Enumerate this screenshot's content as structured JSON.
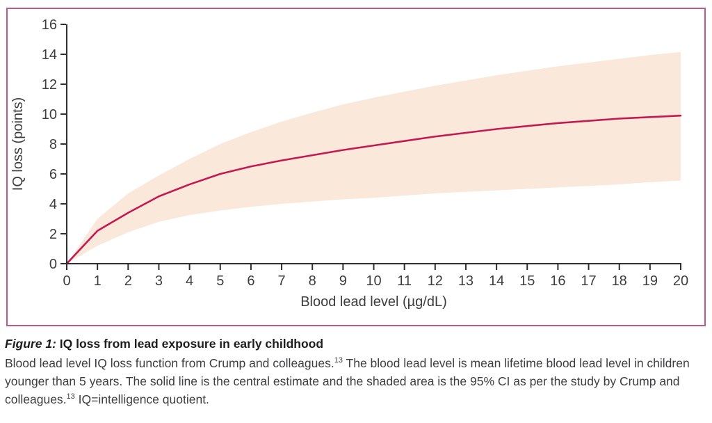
{
  "figure": {
    "panel_border_color": "#bd5a84",
    "background_color": "#ffffff",
    "caption": {
      "title_segments": [
        {
          "text": "Figure 1:",
          "style": "bold-italic"
        },
        {
          "text": " IQ loss from lead exposure in early childhood",
          "style": "bold"
        }
      ],
      "body_segments": [
        {
          "text": "Blood lead level IQ loss function from Crump and colleagues."
        },
        {
          "text": "13",
          "sup": true
        },
        {
          "text": " The blood lead level is mean lifetime blood lead level in children younger than 5 years. The solid line is the central estimate and the shaded area is the 95% CI as per the study by Crump and colleagues."
        },
        {
          "text": "13",
          "sup": true
        },
        {
          "text": " IQ=intelligence quotient."
        }
      ]
    }
  },
  "chart_data": {
    "type": "line",
    "title": "",
    "xlabel": "Blood lead level (µg/dL)",
    "ylabel": "IQ loss (points)",
    "xlim": [
      0,
      20
    ],
    "ylim": [
      0,
      16
    ],
    "x_ticks": [
      0,
      1,
      2,
      3,
      4,
      5,
      6,
      7,
      8,
      9,
      10,
      11,
      12,
      13,
      14,
      15,
      16,
      17,
      18,
      19,
      20
    ],
    "y_ticks": [
      0,
      2,
      4,
      6,
      8,
      10,
      12,
      14,
      16
    ],
    "grid": false,
    "legend": "none",
    "axis_color": "#2f2f2f",
    "tick_label_color": "#3d3d3d",
    "band_fill_color": "#fae8db",
    "line_color": "#c41a52",
    "x": [
      0,
      1,
      2,
      3,
      4,
      5,
      6,
      7,
      8,
      9,
      10,
      11,
      12,
      13,
      14,
      15,
      16,
      17,
      18,
      19,
      20
    ],
    "series": [
      {
        "name": "Central estimate",
        "role": "line",
        "values": [
          0,
          2.2,
          3.4,
          4.5,
          5.3,
          6.0,
          6.5,
          6.9,
          7.25,
          7.6,
          7.9,
          8.2,
          8.5,
          8.75,
          9.0,
          9.2,
          9.4,
          9.55,
          9.7,
          9.8,
          9.9
        ]
      },
      {
        "name": "95% CI upper bound",
        "role": "band-upper",
        "values": [
          0,
          3.0,
          4.7,
          5.9,
          7.0,
          8.0,
          8.8,
          9.5,
          10.1,
          10.65,
          11.1,
          11.5,
          11.9,
          12.25,
          12.6,
          12.9,
          13.2,
          13.45,
          13.7,
          13.95,
          14.15
        ]
      },
      {
        "name": "95% CI lower bound",
        "role": "band-lower",
        "values": [
          0,
          1.2,
          2.1,
          2.8,
          3.25,
          3.55,
          3.8,
          4.0,
          4.15,
          4.3,
          4.4,
          4.55,
          4.7,
          4.8,
          4.9,
          5.0,
          5.1,
          5.2,
          5.3,
          5.45,
          5.55
        ]
      }
    ]
  }
}
